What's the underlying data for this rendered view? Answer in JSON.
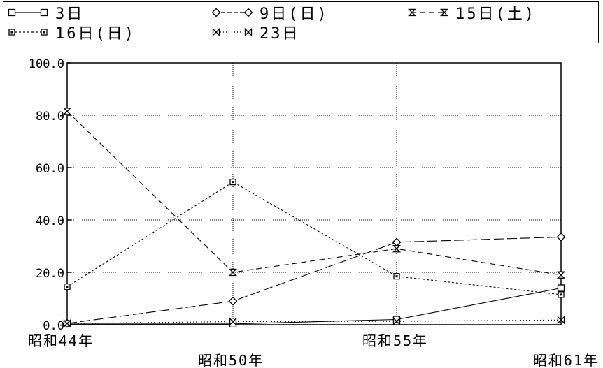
{
  "legend": [
    {
      "label": "3日"
    },
    {
      "label": "9日(日)"
    },
    {
      "label": "15日(土)"
    },
    {
      "label": "16日(日)"
    },
    {
      "label": "23日"
    }
  ],
  "chart_data": {
    "type": "line",
    "categories": [
      "昭和44年",
      "昭和50年",
      "昭和55年",
      "昭和61年"
    ],
    "ylim": [
      0,
      100
    ],
    "yticks": [
      "0.0",
      "20.0",
      "40.0",
      "60.0",
      "80.0",
      "100.0"
    ],
    "grid": true,
    "legend_position": "top",
    "series": [
      {
        "name": "3日",
        "marker": "square",
        "dash": "",
        "values": [
          0.3,
          0.3,
          2.0,
          14.0
        ]
      },
      {
        "name": "9日(日)",
        "marker": "diamond",
        "dash": "14 5",
        "values": [
          0.5,
          9.0,
          31.5,
          33.5
        ]
      },
      {
        "name": "15日(土)",
        "marker": "hourglass",
        "dash": "8 5",
        "values": [
          81.5,
          20.0,
          29.0,
          19.0
        ]
      },
      {
        "name": "16日(日)",
        "marker": "filled-square",
        "dash": "3 3",
        "values": [
          14.5,
          54.5,
          18.5,
          11.5
        ]
      },
      {
        "name": "23日",
        "marker": "bowtie",
        "dash": "1 3",
        "values": [
          0.5,
          1.2,
          1.3,
          1.8
        ]
      }
    ]
  }
}
